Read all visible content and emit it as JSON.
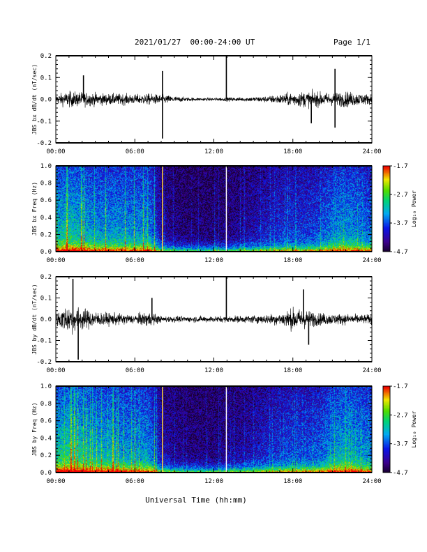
{
  "header": {
    "title": "2021/01/27  00:00-24:00 UT",
    "page": "Page 1/1"
  },
  "global_xlabel": "Universal Time (hh:mm)",
  "chart_data": [
    {
      "type": "line",
      "name": "bx-waveform",
      "ylabel": "JBS bx dB/dt (nT/sec)",
      "xlim": [
        0,
        24
      ],
      "ylim": [
        -0.2,
        0.2
      ],
      "xticks": [
        "00:00",
        "06:00",
        "12:00",
        "18:00",
        "24:00"
      ],
      "yticks": [
        "-0.2",
        "-0.1",
        "0.0",
        "0.1",
        "0.2"
      ],
      "envelope_hours": [
        0,
        1,
        2,
        3,
        4,
        5,
        6,
        7,
        8,
        9,
        10,
        11,
        12,
        13,
        14,
        15,
        16,
        17,
        18,
        19,
        20,
        21,
        22,
        23,
        24
      ],
      "envelope_amplitude": [
        0.03,
        0.05,
        0.045,
        0.04,
        0.035,
        0.035,
        0.03,
        0.035,
        0.03,
        0.02,
        0.012,
        0.01,
        0.01,
        0.012,
        0.012,
        0.015,
        0.02,
        0.03,
        0.045,
        0.05,
        0.045,
        0.04,
        0.05,
        0.04,
        0.03
      ],
      "spikes": [
        {
          "hour": 8.1,
          "value": 0.13
        },
        {
          "hour": 8.1,
          "value": -0.18
        },
        {
          "hour": 12.95,
          "value": 0.2
        },
        {
          "hour": 21.2,
          "value": 0.14
        },
        {
          "hour": 21.2,
          "value": -0.13
        },
        {
          "hour": 19.4,
          "value": -0.11
        },
        {
          "hour": 2.1,
          "value": 0.11
        }
      ]
    },
    {
      "type": "heatmap",
      "name": "bx-spectrogram",
      "ylabel": "JBS bx Freq (Hz)",
      "xlim": [
        0,
        24
      ],
      "ylim": [
        0,
        1.0
      ],
      "xticks": [
        "00:00",
        "06:00",
        "12:00",
        "18:00",
        "24:00"
      ],
      "yticks": [
        "0.0",
        "0.2",
        "0.4",
        "0.6",
        "0.8",
        "1.0"
      ],
      "colorbar": {
        "label": "Log₁₀ Power",
        "min": -4.7,
        "max": -1.7,
        "ticks": [
          "-1.7",
          "-2.7",
          "-3.7",
          "-4.7"
        ]
      },
      "activity_hours": [
        0,
        1,
        2,
        3,
        4,
        5,
        6,
        7,
        8,
        9,
        10,
        11,
        12,
        13,
        14,
        15,
        16,
        17,
        18,
        19,
        20,
        21,
        22,
        23,
        24
      ],
      "activity_level": [
        0.55,
        0.6,
        0.55,
        0.5,
        0.5,
        0.5,
        0.48,
        0.5,
        0.2,
        0.12,
        0.1,
        0.1,
        0.1,
        0.12,
        0.15,
        0.2,
        0.25,
        0.3,
        0.3,
        0.32,
        0.35,
        0.45,
        0.5,
        0.45,
        0.4
      ],
      "vertical_lines_hours": [
        8.1,
        12.95
      ]
    },
    {
      "type": "line",
      "name": "by-waveform",
      "ylabel": "JBS by dB/dt (nT/sec)",
      "xlim": [
        0,
        24
      ],
      "ylim": [
        -0.2,
        0.2
      ],
      "xticks": [
        "00:00",
        "06:00",
        "12:00",
        "18:00",
        "24:00"
      ],
      "yticks": [
        "-0.2",
        "-0.1",
        "0.0",
        "0.1",
        "0.2"
      ],
      "envelope_hours": [
        0,
        1,
        2,
        3,
        4,
        5,
        6,
        7,
        8,
        9,
        10,
        11,
        12,
        13,
        14,
        15,
        16,
        17,
        18,
        19,
        20,
        21,
        22,
        23,
        24
      ],
      "envelope_amplitude": [
        0.05,
        0.09,
        0.07,
        0.05,
        0.04,
        0.035,
        0.03,
        0.05,
        0.02,
        0.02,
        0.018,
        0.02,
        0.02,
        0.02,
        0.022,
        0.025,
        0.03,
        0.04,
        0.07,
        0.06,
        0.04,
        0.035,
        0.035,
        0.03,
        0.03
      ],
      "spikes": [
        {
          "hour": 1.3,
          "value": 0.19
        },
        {
          "hour": 1.7,
          "value": -0.19
        },
        {
          "hour": 12.95,
          "value": 0.2
        },
        {
          "hour": 7.3,
          "value": 0.1
        },
        {
          "hour": 18.8,
          "value": 0.14
        },
        {
          "hour": 19.2,
          "value": -0.12
        }
      ]
    },
    {
      "type": "heatmap",
      "name": "by-spectrogram",
      "ylabel": "JBS by Freq (Hz)",
      "xlim": [
        0,
        24
      ],
      "ylim": [
        0,
        1.0
      ],
      "xticks": [
        "00:00",
        "06:00",
        "12:00",
        "18:00",
        "24:00"
      ],
      "yticks": [
        "0.0",
        "0.2",
        "0.4",
        "0.6",
        "0.8",
        "1.0"
      ],
      "colorbar": {
        "label": "Log₁₀ Power",
        "min": -4.7,
        "max": -1.7,
        "ticks": [
          "-1.7",
          "-2.7",
          "-3.7",
          "-4.7"
        ]
      },
      "activity_hours": [
        0,
        1,
        2,
        3,
        4,
        5,
        6,
        7,
        8,
        9,
        10,
        11,
        12,
        13,
        14,
        15,
        16,
        17,
        18,
        19,
        20,
        21,
        22,
        23,
        24
      ],
      "activity_level": [
        0.6,
        0.65,
        0.6,
        0.55,
        0.55,
        0.5,
        0.5,
        0.5,
        0.22,
        0.15,
        0.12,
        0.12,
        0.12,
        0.15,
        0.18,
        0.22,
        0.28,
        0.32,
        0.35,
        0.35,
        0.38,
        0.5,
        0.55,
        0.5,
        0.45
      ],
      "vertical_lines_hours": [
        8.1,
        12.95
      ]
    }
  ]
}
